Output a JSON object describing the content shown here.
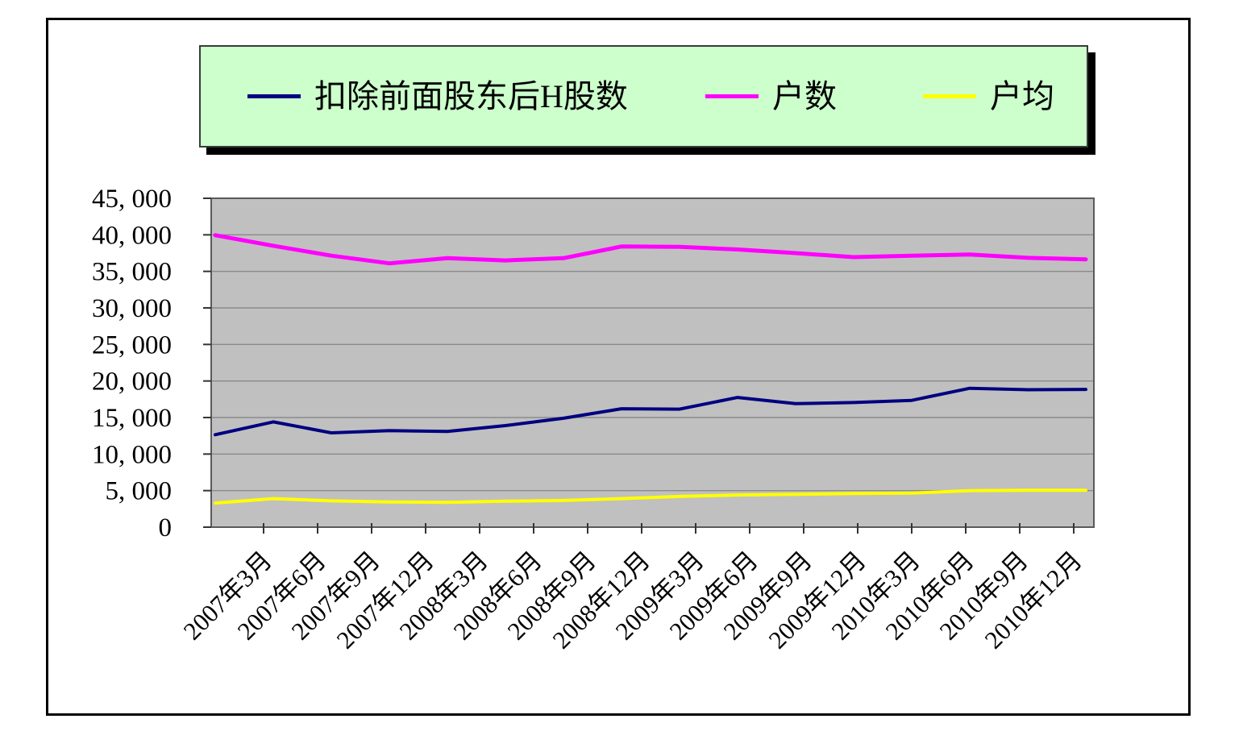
{
  "legend": {
    "bg_color": "#CCFFCC",
    "items": [
      {
        "label": "扣除前面股东后H股数",
        "color": "#000080",
        "icon": "line-swatch-navy"
      },
      {
        "label": "户数",
        "color": "#FF00FF",
        "icon": "line-swatch-magenta"
      },
      {
        "label": "户均",
        "color": "#FFFF00",
        "icon": "line-swatch-yellow"
      }
    ]
  },
  "chart_data": {
    "type": "line",
    "title": "",
    "xlabel": "",
    "ylabel": "",
    "plot_bg": "#C0C0C0",
    "grid": true,
    "legend_position": "top",
    "ylim": [
      0,
      45000
    ],
    "ytick_step": 5000,
    "y_tick_labels": [
      "0",
      "5, 000",
      "10, 000",
      "15, 000",
      "20, 000",
      "25, 000",
      "30, 000",
      "35, 000",
      "40, 000",
      "45, 000"
    ],
    "categories": [
      "2007年3月",
      "2007年6月",
      "2007年9月",
      "2007年12月",
      "2008年3月",
      "2008年6月",
      "2008年9月",
      "2008年12月",
      "2009年3月",
      "2009年6月",
      "2009年9月",
      "2009年12月",
      "2010年3月",
      "2010年6月",
      "2010年9月",
      "2010年12月"
    ],
    "series": [
      {
        "name": "扣除前面股东后H股数",
        "color": "#000080",
        "values": [
          12650,
          14400,
          12900,
          13200,
          13100,
          13900,
          14900,
          16200,
          16150,
          17750,
          16900,
          17050,
          17350,
          19000,
          18800,
          18850
        ]
      },
      {
        "name": "户数",
        "color": "#FF00FF",
        "values": [
          39950,
          38500,
          37150,
          36100,
          36800,
          36500,
          36800,
          38400,
          38350,
          38000,
          37500,
          36950,
          37150,
          37300,
          36850,
          36650
        ]
      },
      {
        "name": "户均",
        "color": "#FFFF00",
        "values": [
          3300,
          3900,
          3600,
          3450,
          3400,
          3550,
          3650,
          3900,
          4200,
          4400,
          4500,
          4600,
          4650,
          5000,
          5050,
          5050
        ]
      }
    ]
  }
}
